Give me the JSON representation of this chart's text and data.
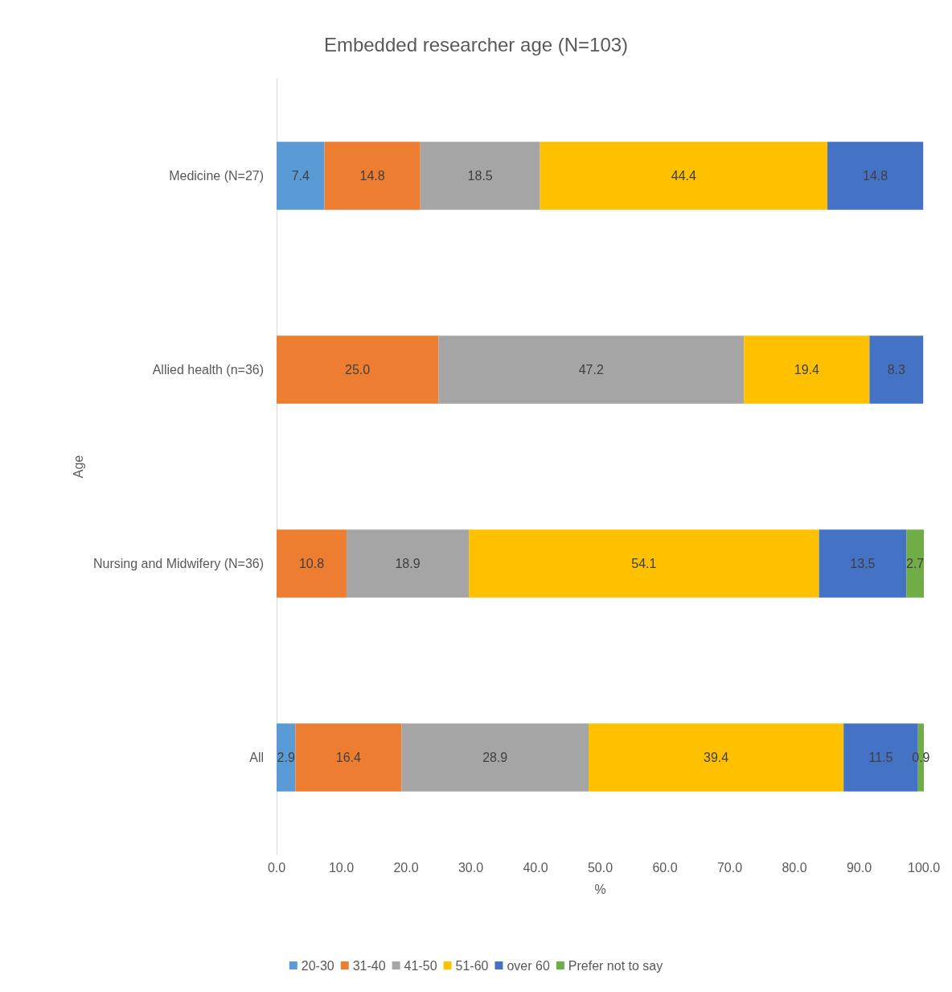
{
  "chart_data": {
    "type": "bar",
    "orientation": "horizontal",
    "stacked": true,
    "title": "Embedded researcher age (N=103)",
    "xlabel": "%",
    "ylabel": "Age",
    "categories": [
      "Medicine (N=27)",
      "Allied health (n=36)",
      "Nursing and Midwifery (N=36)",
      "All"
    ],
    "series": [
      {
        "name": "20-30",
        "color": "#5b9bd5",
        "values": [
          7.4,
          null,
          null,
          2.9
        ],
        "value_labels": [
          "7.4",
          null,
          null,
          "2.9"
        ]
      },
      {
        "name": "31-40",
        "color": "#ed7d31",
        "values": [
          14.8,
          25.0,
          10.8,
          16.4
        ],
        "value_labels": [
          "14.8",
          "25.0",
          "10.8",
          "16.4"
        ]
      },
      {
        "name": "41-50",
        "color": "#a5a5a5",
        "values": [
          18.5,
          47.2,
          18.9,
          28.9
        ],
        "value_labels": [
          "18.5",
          "47.2",
          "18.9",
          "28.9"
        ]
      },
      {
        "name": "51-60",
        "color": "#ffc000",
        "values": [
          44.4,
          19.4,
          54.1,
          39.4
        ],
        "value_labels": [
          "44.4",
          "19.4",
          "54.1",
          "39.4"
        ]
      },
      {
        "name": "over 60",
        "color": "#4472c4",
        "values": [
          14.8,
          8.3,
          13.5,
          11.5
        ],
        "value_labels": [
          "14.8",
          "8.3",
          "13.5",
          "11.5"
        ]
      },
      {
        "name": "Prefer not to say",
        "color": "#70ad47",
        "values": [
          null,
          null,
          2.7,
          0.9
        ],
        "value_labels": [
          null,
          null,
          "2.7",
          "0.9"
        ]
      }
    ],
    "xlim": [
      0,
      100
    ],
    "xticks": [
      {
        "value": 0,
        "label": "0.0"
      },
      {
        "value": 10,
        "label": "10.0"
      },
      {
        "value": 20,
        "label": "20.0"
      },
      {
        "value": 30,
        "label": "30.0"
      },
      {
        "value": 40,
        "label": "40.0"
      },
      {
        "value": 50,
        "label": "50.0"
      },
      {
        "value": 60,
        "label": "60.0"
      },
      {
        "value": 70,
        "label": "70.0"
      },
      {
        "value": 80,
        "label": "80.0"
      },
      {
        "value": 90,
        "label": "90.0"
      },
      {
        "value": 100,
        "label": "100.0"
      }
    ],
    "grid": false,
    "legend": "bottom"
  }
}
